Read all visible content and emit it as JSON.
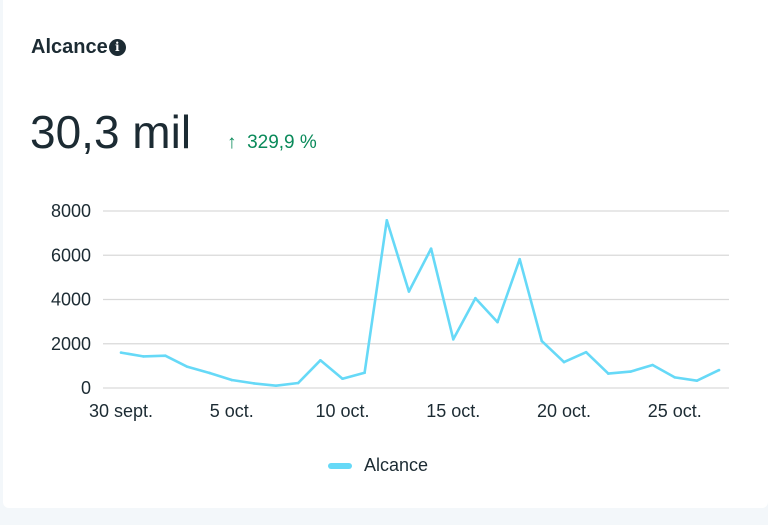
{
  "card": {
    "title": "Alcance",
    "info_icon": "info-icon",
    "value": "30,3 mil",
    "delta_arrow": "↑",
    "delta": "329,9 %",
    "delta_color": "#0a8a5a"
  },
  "chart_data": {
    "type": "line",
    "title": "",
    "xlabel": "",
    "ylabel": "",
    "ylim": [
      0,
      8000
    ],
    "yticks": [
      "0",
      "2000",
      "4000",
      "6000",
      "8000"
    ],
    "xticks": [
      "30 sept.",
      "5 oct.",
      "10 oct.",
      "15 oct.",
      "20 oct.",
      "25 oct."
    ],
    "grid": true,
    "legend": "bottom",
    "x": [
      "30 sept.",
      "1 oct.",
      "2 oct.",
      "3 oct.",
      "4 oct.",
      "5 oct.",
      "6 oct.",
      "7 oct.",
      "8 oct.",
      "9 oct.",
      "10 oct.",
      "11 oct.",
      "12 oct.",
      "13 oct.",
      "14 oct.",
      "15 oct.",
      "16 oct.",
      "17 oct.",
      "18 oct.",
      "19 oct.",
      "20 oct.",
      "21 oct.",
      "22 oct.",
      "23 oct.",
      "24 oct.",
      "25 oct.",
      "26 oct.",
      "27 oct."
    ],
    "series": [
      {
        "name": "Alcance",
        "color": "#66d9f7",
        "values": [
          1600,
          1430,
          1460,
          960,
          680,
          360,
          210,
          105,
          225,
          1250,
          420,
          690,
          7580,
          4360,
          6300,
          2200,
          4060,
          2980,
          5820,
          2120,
          1170,
          1620,
          650,
          740,
          1040,
          480,
          330,
          810
        ]
      }
    ]
  }
}
